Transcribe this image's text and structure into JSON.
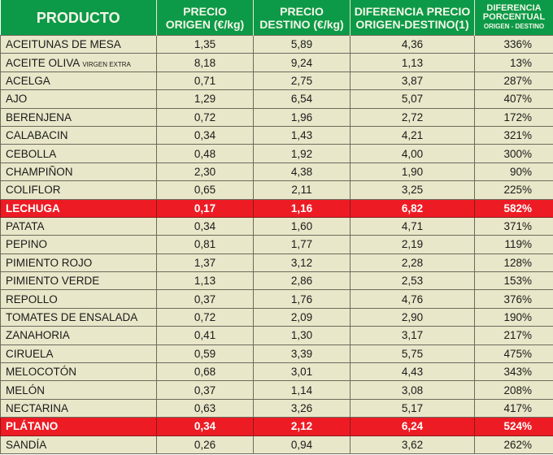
{
  "header": {
    "producto": "PRODUCTO",
    "origen_1": "PRECIO",
    "origen_2": "ORIGEN (€/kg)",
    "destino_1": "PRECIO",
    "destino_2": "DESTINO (€/kg)",
    "diff_1": "DIFERENCIA PRECIO",
    "diff_2": "ORIGEN-DESTINO(1)",
    "pct_1": "DIFERENCIA",
    "pct_2": "PORCENTUAL",
    "pct_3": "ORIGEN - DESTINO"
  },
  "colors": {
    "header": "#0d9a48",
    "highlight": "#ed1c24",
    "row": "#e9e7c9"
  },
  "rows": [
    {
      "name": "ACEITUNAS DE MESA",
      "sub": "",
      "origen": "1,35",
      "destino": "5,89",
      "diff": "4,36",
      "pct": "336%",
      "hl": false
    },
    {
      "name": "ACEITE OLIVA",
      "sub": "VIRGEN EXTRA",
      "origen": "8,18",
      "destino": "9,24",
      "diff": "1,13",
      "pct": "13%",
      "hl": false
    },
    {
      "name": "ACELGA",
      "sub": "",
      "origen": "0,71",
      "destino": "2,75",
      "diff": "3,87",
      "pct": "287%",
      "hl": false
    },
    {
      "name": "AJO",
      "sub": "",
      "origen": "1,29",
      "destino": "6,54",
      "diff": "5,07",
      "pct": "407%",
      "hl": false
    },
    {
      "name": "BERENJENA",
      "sub": "",
      "origen": "0,72",
      "destino": "1,96",
      "diff": "2,72",
      "pct": "172%",
      "hl": false
    },
    {
      "name": "CALABACIN",
      "sub": "",
      "origen": "0,34",
      "destino": "1,43",
      "diff": "4,21",
      "pct": "321%",
      "hl": false
    },
    {
      "name": "CEBOLLA",
      "sub": "",
      "origen": "0,48",
      "destino": "1,92",
      "diff": "4,00",
      "pct": "300%",
      "hl": false
    },
    {
      "name": "CHAMPIÑON",
      "sub": "",
      "origen": "2,30",
      "destino": "4,38",
      "diff": "1,90",
      "pct": "90%",
      "hl": false
    },
    {
      "name": "COLIFLOR",
      "sub": "",
      "origen": "0,65",
      "destino": "2,11",
      "diff": "3,25",
      "pct": "225%",
      "hl": false
    },
    {
      "name": "LECHUGA",
      "sub": "",
      "origen": "0,17",
      "destino": "1,16",
      "diff": "6,82",
      "pct": "582%",
      "hl": true
    },
    {
      "name": "PATATA",
      "sub": "",
      "origen": "0,34",
      "destino": "1,60",
      "diff": "4,71",
      "pct": "371%",
      "hl": false
    },
    {
      "name": "PEPINO",
      "sub": "",
      "origen": "0,81",
      "destino": "1,77",
      "diff": "2,19",
      "pct": "119%",
      "hl": false
    },
    {
      "name": "PIMIENTO ROJO",
      "sub": "",
      "origen": "1,37",
      "destino": "3,12",
      "diff": "2,28",
      "pct": "128%",
      "hl": false
    },
    {
      "name": "PIMIENTO VERDE",
      "sub": "",
      "origen": "1,13",
      "destino": "2,86",
      "diff": "2,53",
      "pct": "153%",
      "hl": false
    },
    {
      "name": "REPOLLO",
      "sub": "",
      "origen": "0,37",
      "destino": "1,76",
      "diff": "4,76",
      "pct": "376%",
      "hl": false
    },
    {
      "name": "TOMATES DE ENSALADA",
      "sub": "",
      "origen": "0,72",
      "destino": "2,09",
      "diff": "2,90",
      "pct": "190%",
      "hl": false
    },
    {
      "name": "ZANAHORIA",
      "sub": "",
      "origen": "0,41",
      "destino": "1,30",
      "diff": "3,17",
      "pct": "217%",
      "hl": false
    },
    {
      "name": "CIRUELA",
      "sub": "",
      "origen": "0,59",
      "destino": "3,39",
      "diff": "5,75",
      "pct": "475%",
      "hl": false
    },
    {
      "name": "MELOCOTÓN",
      "sub": "",
      "origen": "0,68",
      "destino": "3,01",
      "diff": "4,43",
      "pct": "343%",
      "hl": false
    },
    {
      "name": "MELÓN",
      "sub": "",
      "origen": "0,37",
      "destino": "1,14",
      "diff": "3,08",
      "pct": "208%",
      "hl": false
    },
    {
      "name": "NECTARINA",
      "sub": "",
      "origen": "0,63",
      "destino": "3,26",
      "diff": "5,17",
      "pct": "417%",
      "hl": false
    },
    {
      "name": "PLÁTANO",
      "sub": "",
      "origen": "0,34",
      "destino": "2,12",
      "diff": "6,24",
      "pct": "524%",
      "hl": true
    },
    {
      "name": "SANDÍA",
      "sub": "",
      "origen": "0,26",
      "destino": "0,94",
      "diff": "3,62",
      "pct": "262%",
      "hl": false
    }
  ]
}
